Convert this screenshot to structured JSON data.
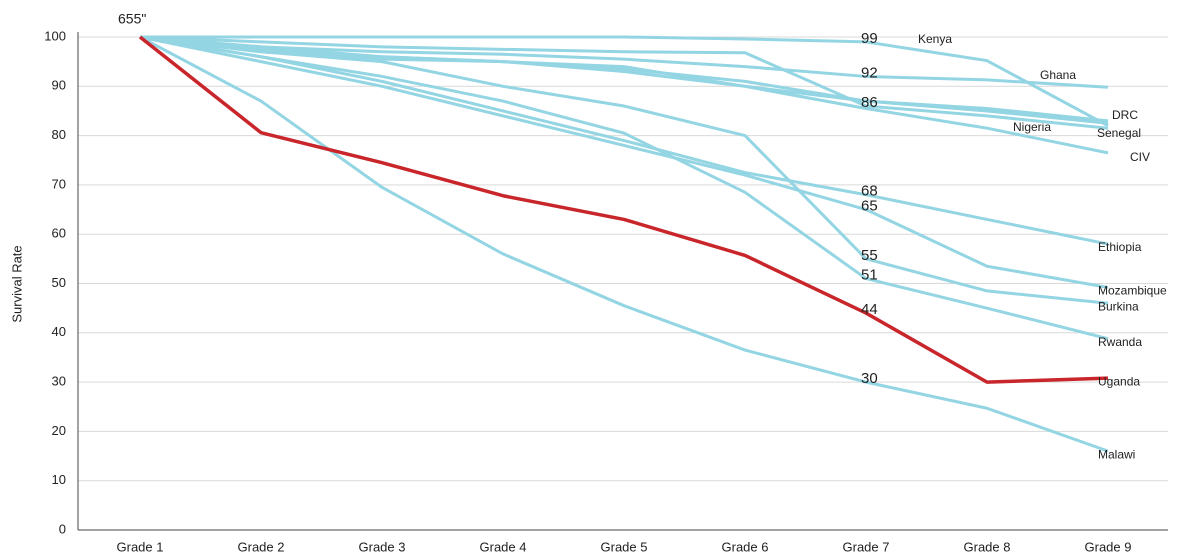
{
  "chart_data": {
    "type": "line",
    "annotation": "655\"",
    "y_label": "Survival Rate",
    "categories": [
      "Grade 1",
      "Grade 2",
      "Grade 3",
      "Grade 4",
      "Grade 5",
      "Grade 6",
      "Grade 7",
      "Grade 8",
      "Grade 9"
    ],
    "ylim": [
      0,
      100
    ],
    "yticks": [
      0,
      10,
      20,
      30,
      40,
      50,
      60,
      70,
      80,
      90,
      100
    ],
    "grid": true,
    "series": [
      {
        "name": "Kenya",
        "color": "#93d5e3",
        "values": [
          100,
          100,
          100,
          100,
          100,
          99.6,
          99,
          95.2,
          82
        ],
        "value_labels": [
          null,
          null,
          null,
          null,
          null,
          null,
          "99",
          null,
          null
        ]
      },
      {
        "name": "Ghana",
        "color": "#93d5e3",
        "values": [
          100,
          98,
          97,
          96.5,
          95.5,
          94,
          92,
          91.3,
          89.8
        ],
        "value_labels": [
          null,
          null,
          null,
          null,
          null,
          null,
          "92",
          null,
          null
        ]
      },
      {
        "name": "DRC",
        "color": "#93d5e3",
        "values": [
          100,
          98,
          96,
          95,
          94,
          90,
          87,
          85.5,
          83
        ]
      },
      {
        "name": "Nigeria",
        "color": "#93d5e3",
        "values": [
          100,
          97,
          95.5,
          95,
          93.5,
          91,
          87,
          85,
          82.5
        ]
      },
      {
        "name": "Senegal",
        "color": "#93d5e3",
        "values": [
          100,
          99,
          98,
          97.5,
          97,
          96.8,
          86,
          84,
          81.5
        ],
        "value_labels": [
          null,
          null,
          null,
          null,
          null,
          null,
          "86",
          null,
          null
        ]
      },
      {
        "name": "CIV",
        "color": "#93d5e3",
        "values": [
          100,
          97.5,
          96,
          95,
          93,
          90,
          85.5,
          81.5,
          76.5
        ]
      },
      {
        "name": "Ethiopia",
        "color": "#93d5e3",
        "values": [
          100,
          96,
          91,
          85,
          79,
          72.5,
          68,
          63,
          58
        ],
        "value_labels": [
          null,
          null,
          null,
          null,
          null,
          null,
          "68",
          null,
          null
        ]
      },
      {
        "name": "Mozambique",
        "color": "#93d5e3",
        "values": [
          100,
          95,
          90,
          84,
          78,
          72,
          65,
          53.5,
          49.2
        ],
        "value_labels": [
          null,
          null,
          null,
          null,
          null,
          null,
          "65",
          null,
          null
        ]
      },
      {
        "name": "Burkina",
        "color": "#93d5e3",
        "values": [
          100,
          97,
          95,
          90,
          86,
          80,
          55,
          48.5,
          46
        ],
        "value_labels": [
          null,
          null,
          null,
          null,
          null,
          null,
          "55",
          null,
          null
        ]
      },
      {
        "name": "Rwanda",
        "color": "#93d5e3",
        "values": [
          100,
          96,
          92,
          87,
          80.5,
          68.5,
          51,
          45,
          38.8
        ],
        "value_labels": [
          null,
          null,
          null,
          null,
          null,
          null,
          "51",
          null,
          null
        ]
      },
      {
        "name": "Uganda",
        "color": "#c8262b",
        "values": [
          100,
          80.6,
          74.5,
          67.8,
          63,
          55.7,
          44,
          30,
          30.8
        ],
        "value_labels": [
          null,
          null,
          null,
          null,
          null,
          null,
          "44",
          null,
          null
        ]
      },
      {
        "name": "Malawi",
        "color": "#93d5e3",
        "values": [
          100,
          87,
          69.5,
          56,
          45.5,
          36.5,
          30,
          24.7,
          16
        ],
        "value_labels": [
          null,
          null,
          null,
          null,
          null,
          null,
          "30",
          null,
          null
        ]
      }
    ]
  }
}
